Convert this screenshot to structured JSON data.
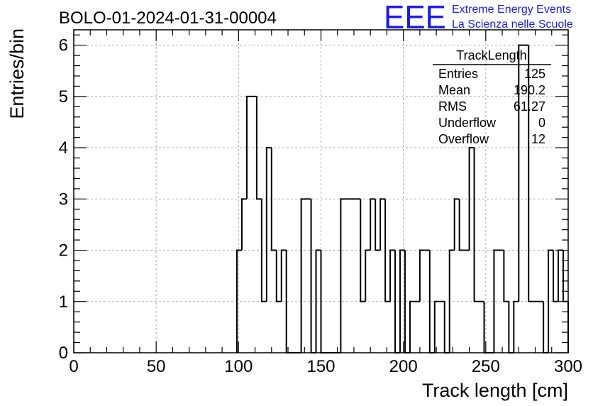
{
  "header": {
    "run_title": "BOLO-01-2024-01-31-00004",
    "logo_text": "EEE",
    "logo_line1": "Extreme Energy Events",
    "logo_line2": "La Scienza nelle Scuole",
    "logo_color": "#1a1aee"
  },
  "stats_box": {
    "title": "TrackLength",
    "rows": [
      {
        "label": "Entries",
        "value": "125"
      },
      {
        "label": "Mean",
        "value": "190.2"
      },
      {
        "label": "RMS",
        "value": "61.27"
      },
      {
        "label": "Underflow",
        "value": "0"
      },
      {
        "label": "Overflow",
        "value": "12"
      }
    ]
  },
  "chart_data": {
    "type": "histogram",
    "xlabel": "Track length [cm]",
    "ylabel": "Entries/bin",
    "xlim": [
      0,
      300
    ],
    "ylim": [
      0,
      6.3
    ],
    "grid": true,
    "bin_width": 3,
    "x_ticks": [
      0,
      50,
      100,
      150,
      200,
      250,
      300
    ],
    "y_ticks": [
      0,
      1,
      2,
      3,
      4,
      5,
      6
    ],
    "bin_edges_start": [
      99,
      102,
      105,
      108,
      111,
      114,
      117,
      120,
      123,
      126,
      129,
      132,
      135,
      138,
      141,
      144,
      147,
      150,
      153,
      156,
      159,
      162,
      165,
      168,
      171,
      174,
      177,
      180,
      183,
      186,
      189,
      192,
      195,
      198,
      201,
      204,
      207,
      210,
      213,
      216,
      219,
      222,
      225,
      228,
      231,
      234,
      237,
      240,
      243,
      246,
      249,
      252,
      255,
      258,
      261,
      264,
      267,
      270,
      273,
      276,
      279,
      282,
      285,
      288,
      291,
      294,
      297
    ],
    "counts": [
      2,
      3,
      5,
      5,
      3,
      1,
      4,
      2,
      1,
      2,
      0,
      0,
      0,
      3,
      3,
      0,
      2,
      0,
      0,
      0,
      0,
      3,
      3,
      3,
      3,
      1,
      2,
      3,
      2,
      3,
      1,
      2,
      0,
      2,
      0,
      1,
      1,
      2,
      2,
      0,
      1,
      1,
      0,
      2,
      3,
      2,
      2,
      4,
      1,
      1,
      0,
      0,
      2,
      2,
      1,
      0,
      1,
      6,
      6,
      1,
      1,
      1,
      0,
      2,
      1,
      2,
      1
    ]
  }
}
